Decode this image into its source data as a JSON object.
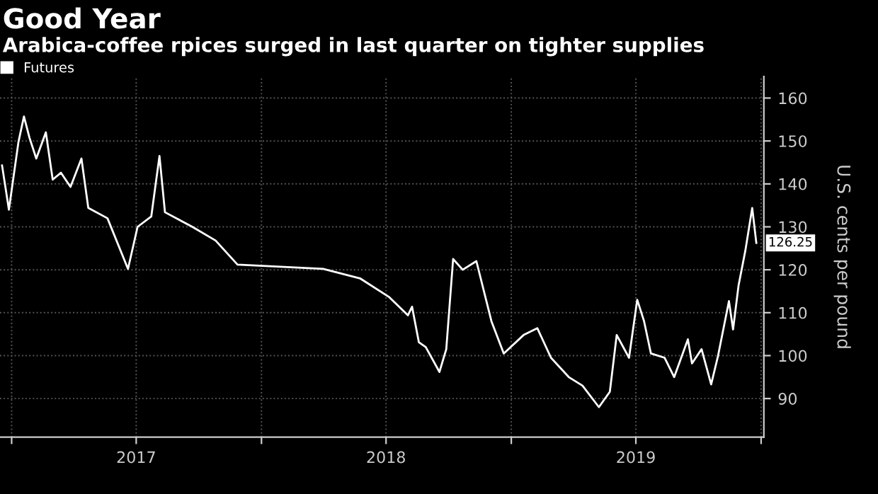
{
  "chart_data": {
    "type": "line",
    "title": "Good Year",
    "subtitle": "Arabica-coffee rpices surged in last quarter on tighter supplies",
    "ylabel": "U.S. cents per pound",
    "x": [
      "2016-12-18",
      "2016-12-28",
      "2017-01-11",
      "2017-01-19",
      "2017-01-27",
      "2017-02-06",
      "2017-02-20",
      "2017-03-02",
      "2017-03-14",
      "2017-03-28",
      "2017-04-13",
      "2017-04-23",
      "2017-05-21",
      "2017-06-20",
      "2017-07-04",
      "2017-07-24",
      "2017-08-05",
      "2017-08-13",
      "2017-09-22",
      "2017-10-26",
      "2017-11-27",
      "2018-04-01",
      "2018-05-25",
      "2018-07-06",
      "2018-08-03",
      "2018-08-09",
      "2018-08-19",
      "2018-08-29",
      "2018-09-18",
      "2018-09-28",
      "2018-10-08",
      "2018-10-22",
      "2018-11-11",
      "2018-12-03",
      "2018-12-21",
      "2019-01-19",
      "2019-02-08",
      "2019-02-28",
      "2019-03-26",
      "2019-04-15",
      "2019-05-09",
      "2019-05-25",
      "2019-06-04",
      "2019-06-22",
      "2019-07-04",
      "2019-07-14",
      "2019-07-24",
      "2019-08-13",
      "2019-08-27",
      "2019-09-16",
      "2019-09-22",
      "2019-10-06",
      "2019-10-20",
      "2019-10-30",
      "2019-11-15",
      "2019-11-21",
      "2019-11-29",
      "2019-12-09",
      "2019-12-19",
      "2019-12-25"
    ],
    "series": [
      {
        "name": "Futures",
        "color": "#ffffff",
        "values": [
          144.3,
          134,
          149.8,
          155.7,
          150.8,
          145.9,
          152,
          141,
          142.6,
          139.3,
          145.9,
          134.4,
          132,
          120.2,
          130,
          132.4,
          146.5,
          133.4,
          130,
          126.8,
          121.2,
          120.2,
          118,
          113.7,
          109.4,
          111.4,
          103.1,
          102,
          96.2,
          101.5,
          122.5,
          120,
          122,
          108,
          100.5,
          104.8,
          106.4,
          99.5,
          95,
          93,
          88,
          91.6,
          104.8,
          99.5,
          113,
          108,
          100.5,
          99.5,
          95,
          103.8,
          98.2,
          101.5,
          93.3,
          99.9,
          112.7,
          106.1,
          116.3,
          124.5,
          134.4,
          126.25
        ],
        "value_labels": [
          null,
          null,
          null,
          null,
          null,
          null,
          null,
          null,
          null,
          null,
          null,
          null,
          null,
          null,
          null,
          null,
          null,
          null,
          null,
          null,
          null,
          null,
          null,
          null,
          null,
          null,
          null,
          null,
          null,
          null,
          null,
          null,
          null,
          null,
          null,
          null,
          null,
          null,
          null,
          null,
          null,
          null,
          null,
          null,
          null,
          null,
          null,
          null,
          null,
          null,
          null,
          null,
          null,
          null,
          null,
          null,
          null,
          null,
          null,
          "126.25"
        ]
      }
    ],
    "xlim": [
      "2016-12-15",
      "2020-01-05"
    ],
    "xticks": [
      {
        "value": "2017-01-01",
        "label": null
      },
      {
        "value": "2017-07-02",
        "label": "2017"
      },
      {
        "value": "2018-01-01",
        "label": null
      },
      {
        "value": "2018-07-02",
        "label": "2018"
      },
      {
        "value": "2019-01-01",
        "label": null
      },
      {
        "value": "2019-07-02",
        "label": "2019"
      },
      {
        "value": "2020-01-01",
        "label": null
      }
    ],
    "ylim": [
      81,
      165
    ],
    "yticks": [
      90,
      100,
      110,
      120,
      130,
      140,
      150,
      160
    ],
    "grid": true,
    "legend": "top left"
  }
}
